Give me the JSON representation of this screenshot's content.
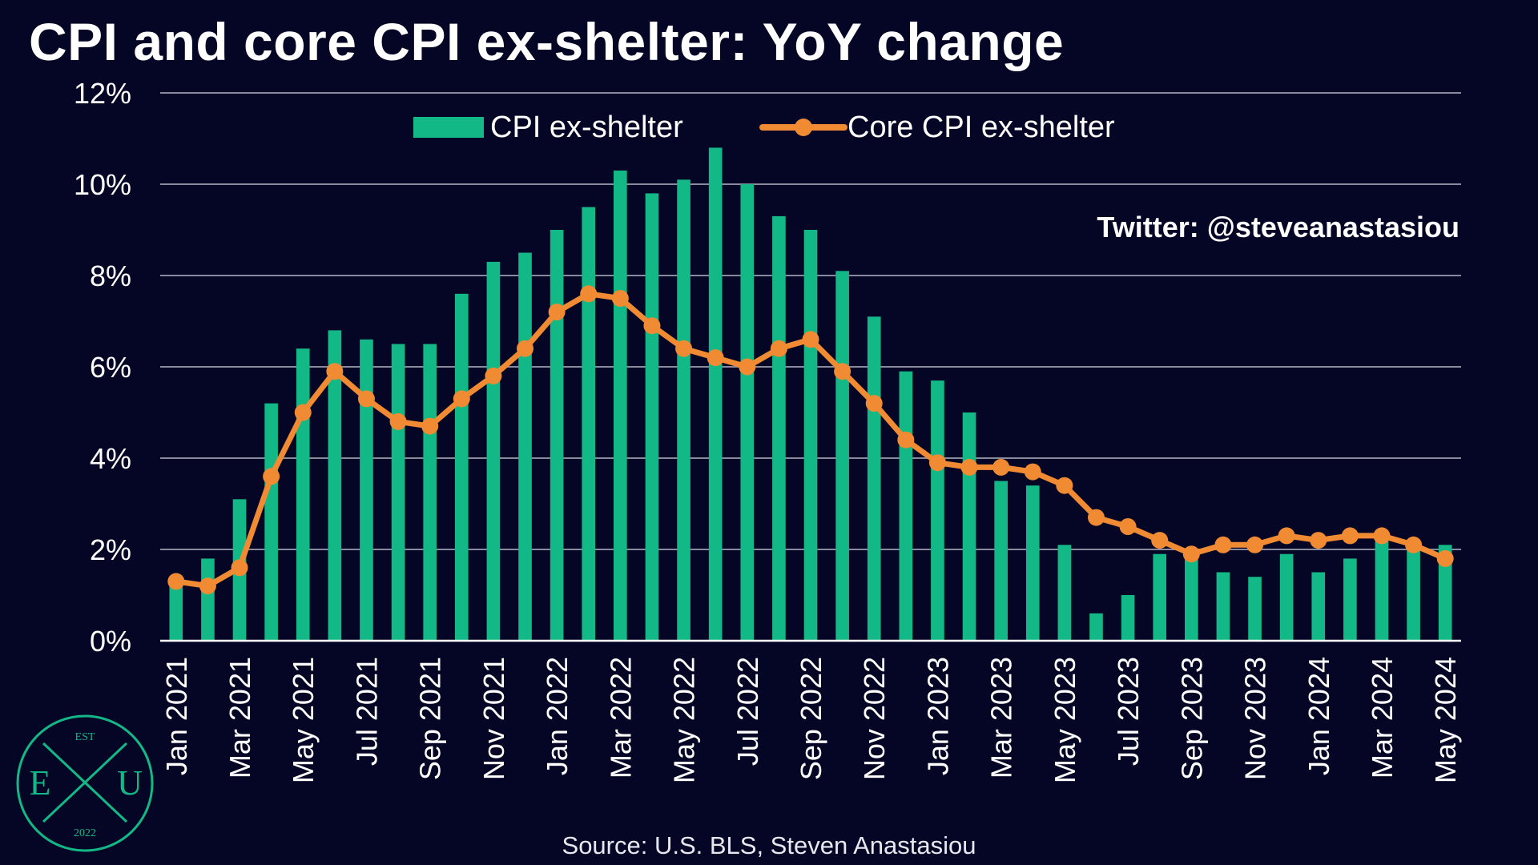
{
  "title": "CPI and core CPI ex-shelter: YoY change",
  "source": "Source: U.S. BLS, Steven Anastasiou",
  "annotation": "Twitter: @steveanastasiou",
  "logo": {
    "top": "EST",
    "left": "E",
    "right": "U",
    "bottom": "2022",
    "monogram": "X"
  },
  "colors": {
    "background": "#050526",
    "bar": "#12B886",
    "line": "#F08A33",
    "grid": "#8a8a9e",
    "axis": "#ffffff",
    "text": "#ffffff"
  },
  "chart_data": {
    "type": "bar",
    "x": [
      "Jan 2021",
      "Feb 2021",
      "Mar 2021",
      "Apr 2021",
      "May 2021",
      "Jun 2021",
      "Jul 2021",
      "Aug 2021",
      "Sep 2021",
      "Oct 2021",
      "Nov 2021",
      "Dec 2021",
      "Jan 2022",
      "Feb 2022",
      "Mar 2022",
      "Apr 2022",
      "May 2022",
      "Jun 2022",
      "Jul 2022",
      "Aug 2022",
      "Sep 2022",
      "Oct 2022",
      "Nov 2022",
      "Dec 2022",
      "Jan 2023",
      "Feb 2023",
      "Mar 2023",
      "Apr 2023",
      "May 2023",
      "Jun 2023",
      "Jul 2023",
      "Aug 2023",
      "Sep 2023",
      "Oct 2023",
      "Nov 2023",
      "Dec 2023",
      "Jan 2024",
      "Feb 2024",
      "Mar 2024",
      "Apr 2024",
      "May 2024"
    ],
    "tick_labels": [
      "Jan 2021",
      "Mar 2021",
      "May 2021",
      "Jul 2021",
      "Sep 2021",
      "Nov 2021",
      "Jan 2022",
      "Mar 2022",
      "May 2022",
      "Jul 2022",
      "Sep 2022",
      "Nov 2022",
      "Jan 2023",
      "Mar 2023",
      "May 2023",
      "Jul 2023",
      "Sep 2023",
      "Nov 2023",
      "Jan 2024",
      "Mar 2024",
      "May 2024"
    ],
    "series": [
      {
        "name": "CPI ex-shelter",
        "kind": "bar",
        "color": "#12B886",
        "values": [
          1.3,
          1.8,
          3.1,
          5.2,
          6.4,
          6.8,
          6.6,
          6.5,
          6.5,
          7.6,
          8.3,
          8.5,
          9.0,
          9.5,
          10.3,
          9.8,
          10.1,
          10.8,
          10.0,
          9.3,
          9.0,
          8.1,
          7.1,
          5.9,
          5.7,
          5.0,
          3.5,
          3.4,
          2.1,
          0.6,
          1.0,
          1.9,
          2.0,
          1.5,
          1.4,
          1.9,
          1.5,
          1.8,
          2.3,
          2.1,
          2.1
        ]
      },
      {
        "name": "Core CPI ex-shelter",
        "kind": "line",
        "color": "#F08A33",
        "values": [
          1.3,
          1.2,
          1.6,
          3.6,
          5.0,
          5.9,
          5.3,
          4.8,
          4.7,
          5.3,
          5.8,
          6.4,
          7.2,
          7.6,
          7.5,
          6.9,
          6.4,
          6.2,
          6.0,
          6.4,
          6.6,
          5.9,
          5.2,
          4.4,
          3.9,
          3.8,
          3.8,
          3.7,
          3.4,
          2.7,
          2.5,
          2.2,
          1.9,
          2.1,
          2.1,
          2.3,
          2.2,
          2.3,
          2.3,
          2.1,
          1.8
        ]
      }
    ],
    "ylim": [
      0,
      12
    ],
    "yticks": [
      0,
      2,
      4,
      6,
      8,
      10,
      12
    ],
    "ytick_format": "{v}%",
    "xlabel": "",
    "ylabel": "",
    "grid": true,
    "legend": "top-center"
  }
}
